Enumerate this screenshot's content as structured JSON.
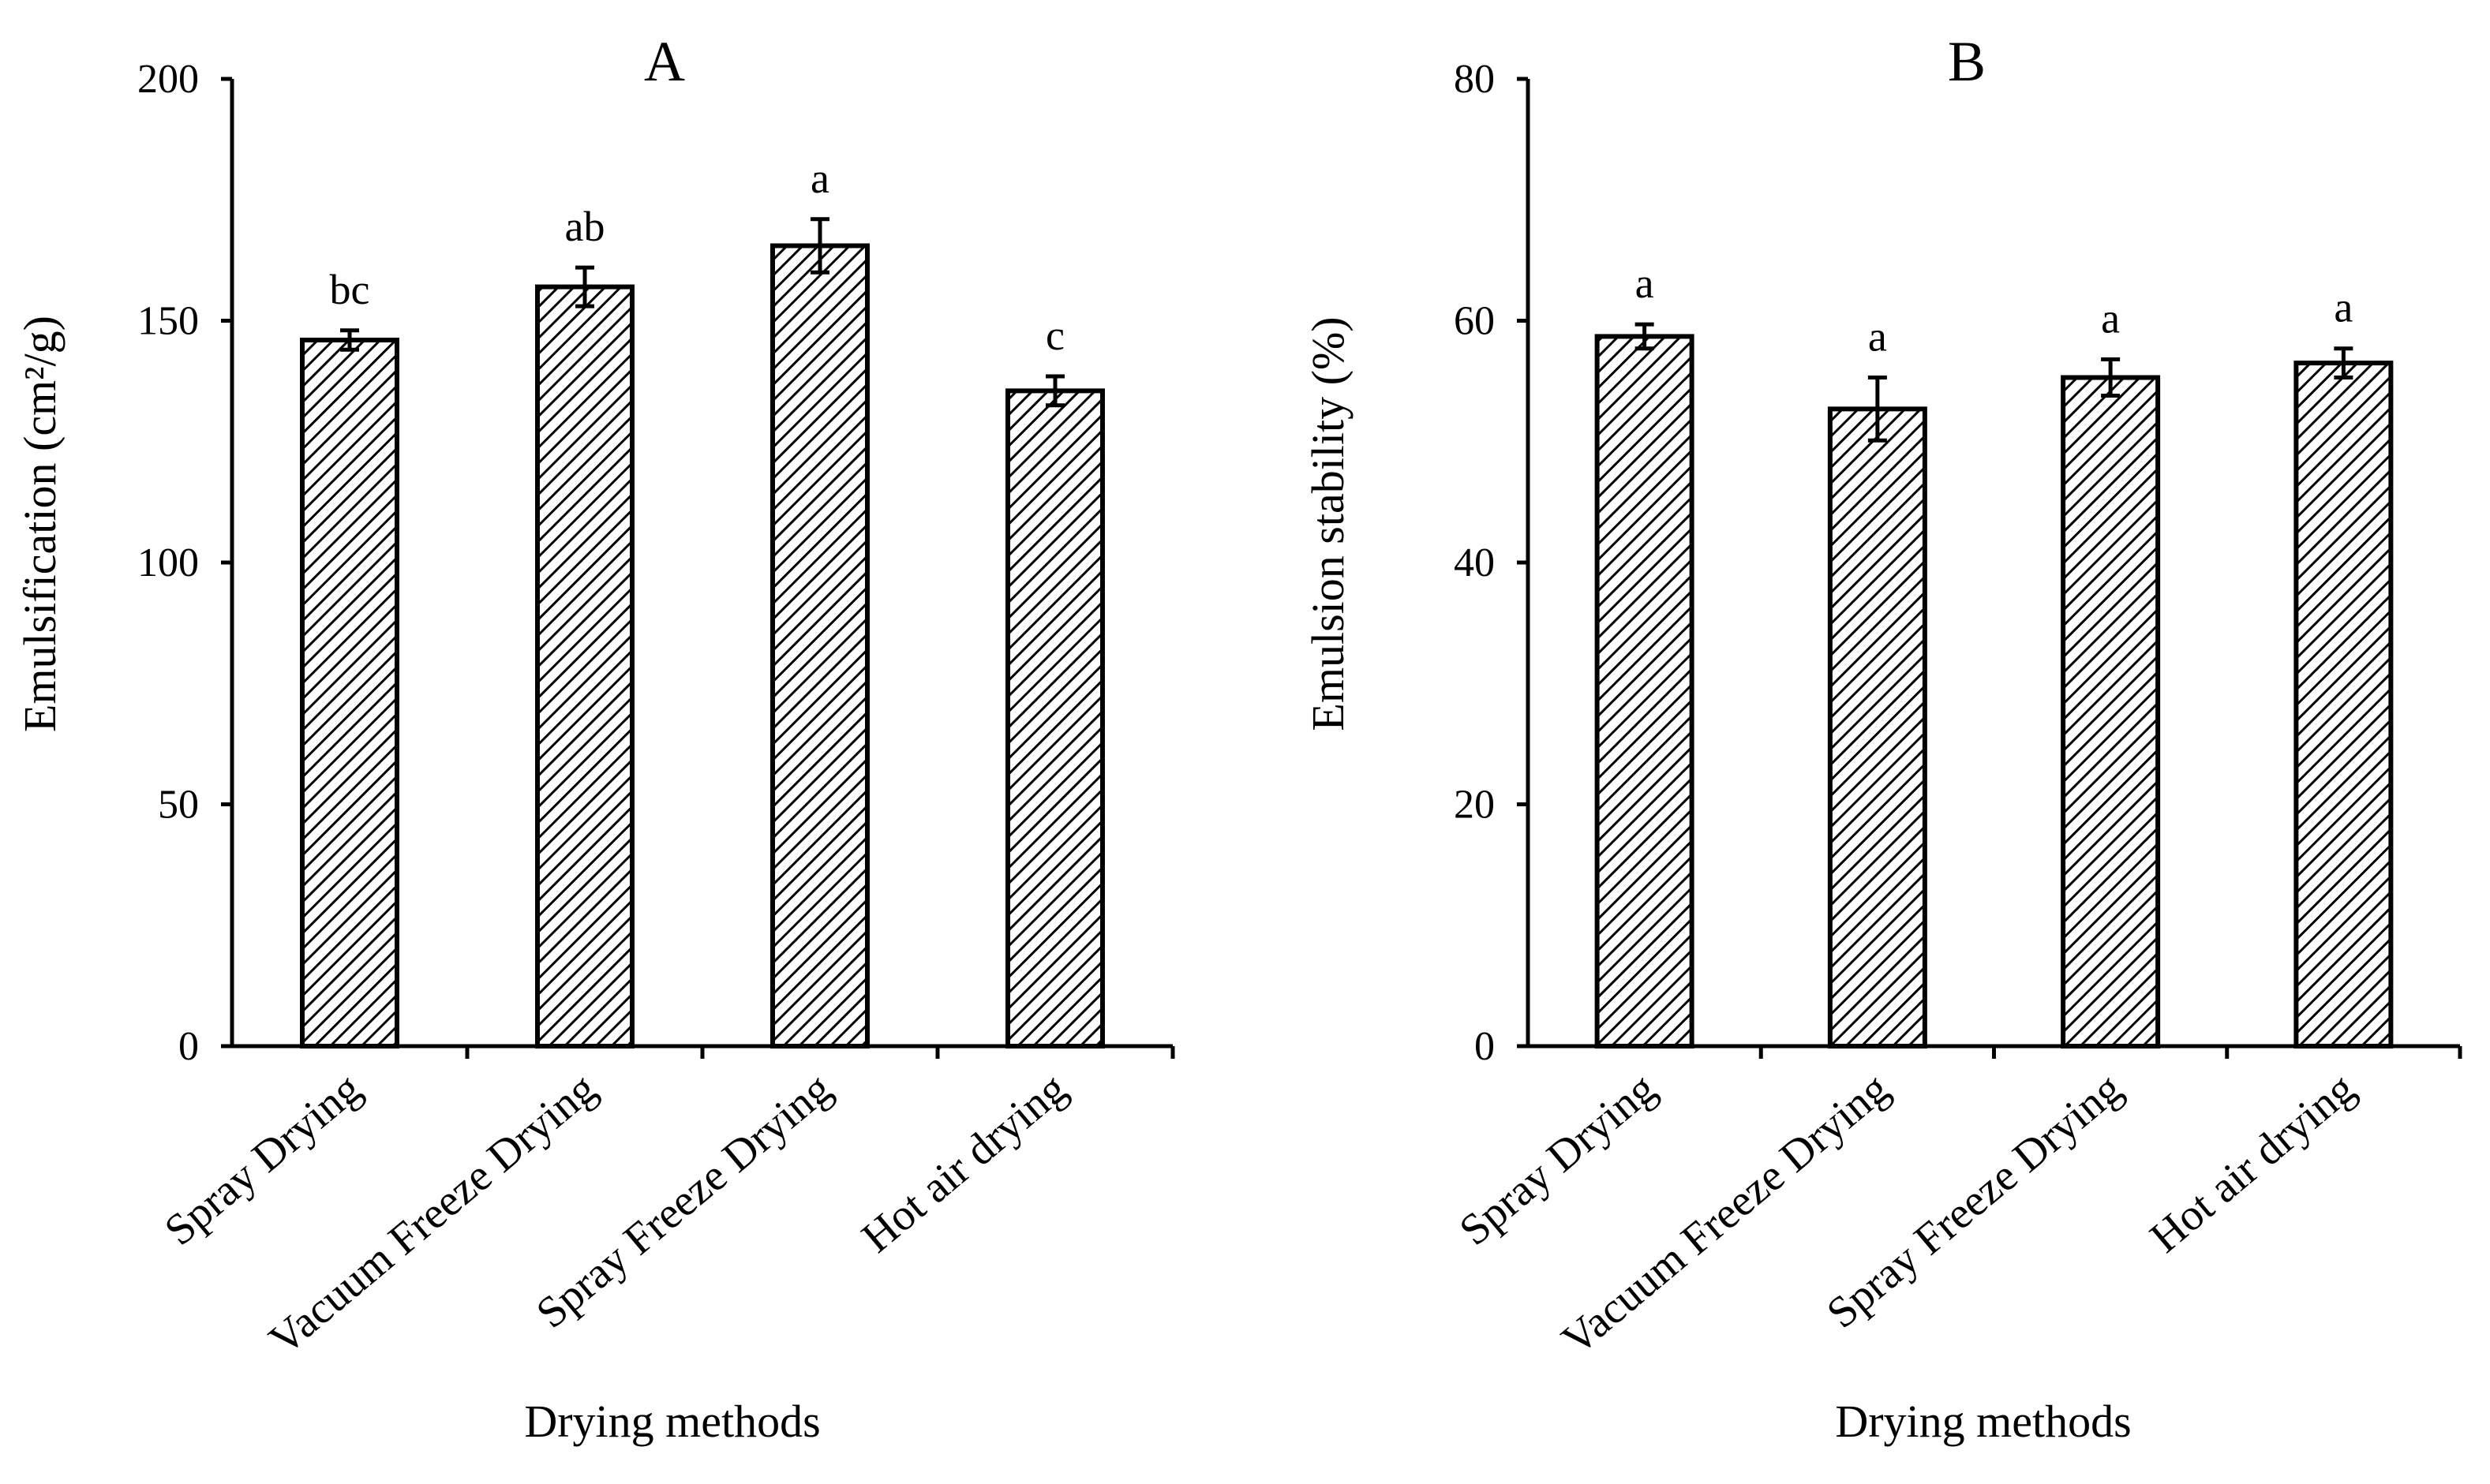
{
  "chart_data": [
    {
      "type": "bar",
      "title": "A",
      "categories": [
        "Spray Drying",
        "Vacuum Freeze Drying",
        "Spray Freeze Drying",
        "Hot air drying"
      ],
      "values": [
        146,
        157,
        165.5,
        135.5
      ],
      "errors": [
        2,
        4,
        5.5,
        3
      ],
      "significance": [
        "bc",
        "ab",
        "a",
        "c"
      ],
      "xlabel": "Drying methods",
      "ylabel": "Emulsification (cm²/g)",
      "ylim": [
        0,
        200
      ],
      "yticks": [
        0,
        50,
        100,
        150,
        200
      ],
      "grid": false,
      "legend": "none",
      "fill": "diagonal-hatch",
      "bar_color": "#ffffff",
      "line_color": "#000000"
    },
    {
      "type": "bar",
      "title": "B",
      "categories": [
        "Spray Drying",
        "Vacuum Freeze Drying",
        "Spray Freeze Drying",
        "Hot air drying"
      ],
      "values": [
        58.7,
        52.7,
        55.3,
        56.5
      ],
      "errors": [
        1,
        2.6,
        1.5,
        1.2
      ],
      "significance": [
        "a",
        "a",
        "a",
        "a"
      ],
      "xlabel": "Drying methods",
      "ylabel": "Emulsion stability (%)",
      "ylim": [
        0,
        80
      ],
      "yticks": [
        0,
        20,
        40,
        60,
        80
      ],
      "grid": false,
      "legend": "none",
      "fill": "diagonal-hatch",
      "bar_color": "#ffffff",
      "line_color": "#000000"
    }
  ]
}
